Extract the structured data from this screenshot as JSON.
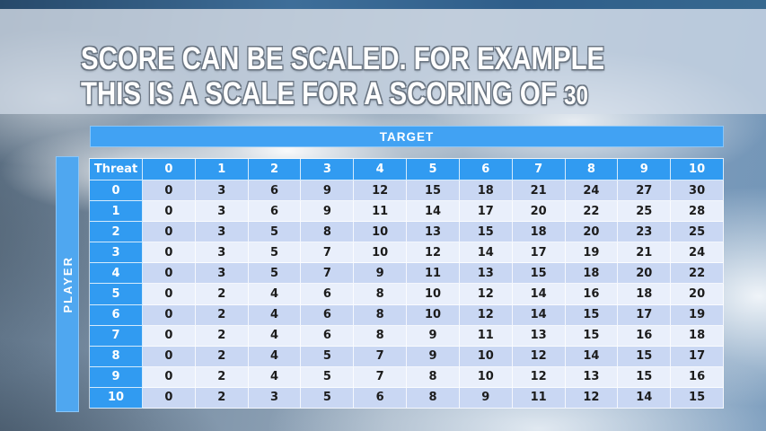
{
  "slide": {
    "title_line1": "SCORE CAN BE SCALED. FOR EXAMPLE",
    "title_line2": "THIS IS A SCALE FOR A SCORING OF",
    "title_scale_value": "30"
  },
  "table": {
    "target_label": "TARGET",
    "player_label": "PLAYER",
    "corner_label": "Threat",
    "column_headers": [
      "0",
      "1",
      "2",
      "3",
      "4",
      "5",
      "6",
      "7",
      "8",
      "9",
      "10"
    ],
    "row_headers": [
      "0",
      "1",
      "2",
      "3",
      "4",
      "5",
      "6",
      "7",
      "8",
      "9",
      "10"
    ],
    "rows": [
      [
        0,
        3,
        6,
        9,
        12,
        15,
        18,
        21,
        24,
        27,
        30
      ],
      [
        0,
        3,
        6,
        9,
        11,
        14,
        17,
        20,
        22,
        25,
        28
      ],
      [
        0,
        3,
        5,
        8,
        10,
        13,
        15,
        18,
        20,
        23,
        25
      ],
      [
        0,
        3,
        5,
        7,
        10,
        12,
        14,
        17,
        19,
        21,
        24
      ],
      [
        0,
        3,
        5,
        7,
        9,
        11,
        13,
        15,
        18,
        20,
        22
      ],
      [
        0,
        2,
        4,
        6,
        8,
        10,
        12,
        14,
        16,
        18,
        20
      ],
      [
        0,
        2,
        4,
        6,
        8,
        10,
        12,
        14,
        15,
        17,
        19
      ],
      [
        0,
        2,
        4,
        6,
        8,
        9,
        11,
        13,
        15,
        16,
        18
      ],
      [
        0,
        2,
        4,
        5,
        7,
        9,
        10,
        12,
        14,
        15,
        17
      ],
      [
        0,
        2,
        4,
        5,
        7,
        8,
        10,
        12,
        13,
        15,
        16
      ],
      [
        0,
        2,
        3,
        5,
        6,
        8,
        9,
        11,
        12,
        14,
        15
      ]
    ]
  },
  "colors": {
    "header_blue": "#319bf1",
    "banner_blue": "#41a2f3",
    "player_blue": "#4fa7f0",
    "band_dark": "#c9d7f3",
    "band_light": "#e9effb",
    "number_text": "#1c1c1c",
    "title_text": "#ffffff",
    "title_outline": "#6b7683",
    "title_strip": "rgba(210,221,233,0.72)",
    "top_bar": "#2f5e8a"
  }
}
